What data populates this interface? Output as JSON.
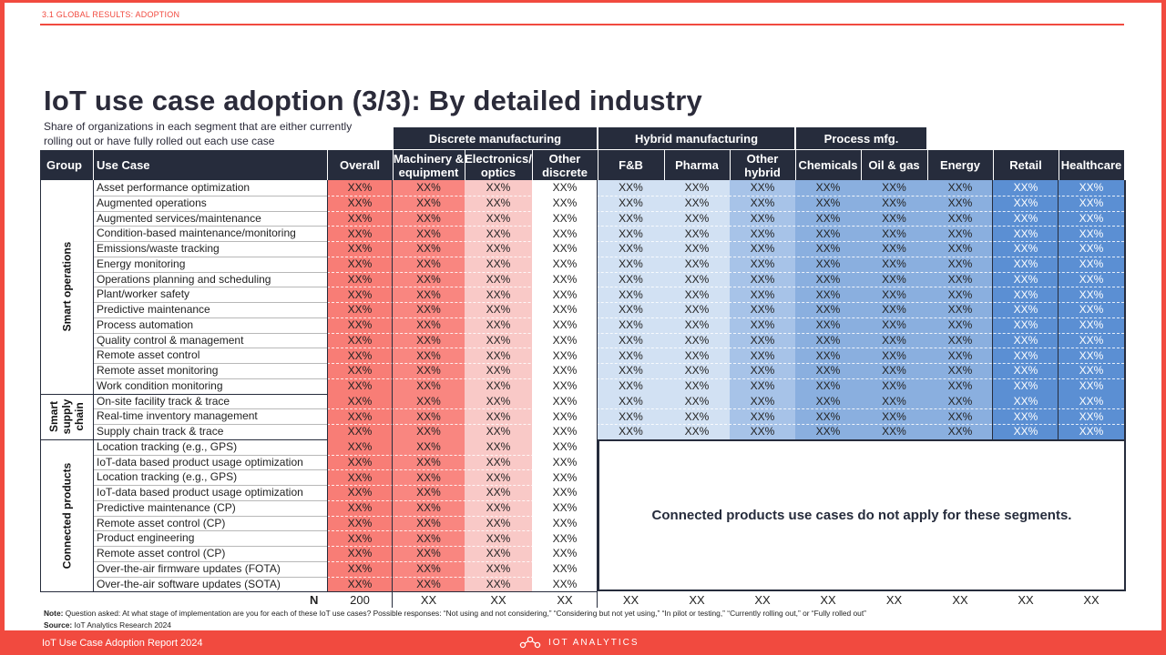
{
  "header": {
    "section_label": "3.1 GLOBAL RESULTS: ADOPTION",
    "title": "IoT use case adoption (3/3): By detailed industry",
    "subtitle": "Share of organizations in each segment that are either currently rolling out or have fully rolled out each use case"
  },
  "table": {
    "group_headers": [
      "Discrete manufacturing",
      "Hybrid manufacturing",
      "Process mfg."
    ],
    "col_group": "Group",
    "col_usecase": "Use Case",
    "columns": [
      "Overall",
      "Machinery & equipment",
      "Electronics/ optics",
      "Other discrete",
      "F&B",
      "Pharma",
      "Other hybrid",
      "Chemicals",
      "Oil & gas",
      "Energy",
      "Retail",
      "Healthcare"
    ],
    "column_colors": [
      "#f87d76",
      "#f98680",
      "#f9c9c7",
      "#ffffff",
      "#d2e1f3",
      "#d2e1f3",
      "#a7c3e8",
      "#8aafdf",
      "#8aafdf",
      "#8aafdf",
      "#5b8fd3",
      "#5b8fd3"
    ],
    "groups": [
      {
        "name": "Smart operations",
        "rows": [
          "Asset performance optimization",
          "Augmented operations",
          "Augmented services/maintenance",
          "Condition-based  maintenance/monitoring",
          "Emissions/waste  tracking",
          "Energy monitoring",
          "Operations planning and scheduling",
          "Plant/worker safety",
          "Predictive maintenance",
          "Process automation",
          "Quality control & management",
          "Remote asset control",
          "Remote asset monitoring",
          "Work condition  monitoring"
        ]
      },
      {
        "name": "Smart supply chain",
        "rows": [
          "On-site facility track & trace",
          "Real-time inventory management",
          "Supply chain track & trace"
        ]
      },
      {
        "name": "Connected products",
        "rows": [
          "Location tracking (e.g., GPS)",
          "IoT-data based product usage optimization",
          "Location tracking (e.g., GPS)",
          "IoT-data based product usage optimization",
          "Predictive maintenance (CP)",
          "Remote asset control (CP)",
          "Product engineering",
          "Remote asset control (CP)",
          "Over-the-air firmware updates (FOTA)",
          "Over-the-air software updates (SOTA)"
        ]
      }
    ],
    "cell_value": "XX%",
    "not_applicable_text": "Connected products use cases do not apply for these segments.",
    "n_label": "N",
    "n_values": [
      "200",
      "XX",
      "XX",
      "XX",
      "XX",
      "XX",
      "XX",
      "XX",
      "XX",
      "XX",
      "XX",
      "XX"
    ]
  },
  "notes": {
    "note_label": "Note:",
    "note_text": " Question asked: At what stage of implementation are you for each of these IoT use cases? Possible responses: “Not using and not considering,” “Considering but not yet using,” “In pilot or testing,” “Currently rolling out,” or “Fully rolled out”",
    "source_label": "Source:",
    "source_text": " IoT Analytics Research 2024"
  },
  "footer": {
    "report_name": "IoT Use Case Adoption Report 2024",
    "brand": "IOT ANALYTICS"
  }
}
